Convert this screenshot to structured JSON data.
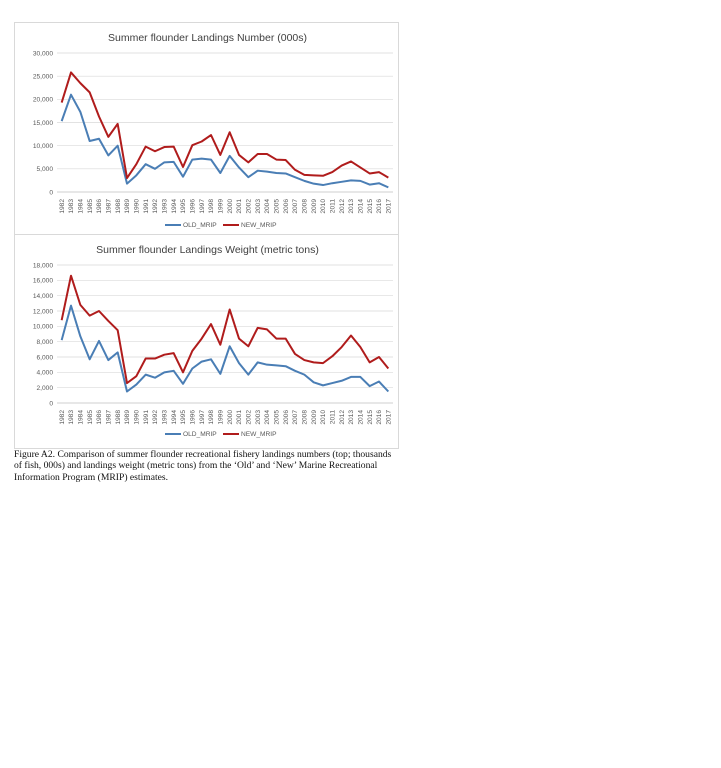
{
  "colors": {
    "old_mrip": "#4a7eb5",
    "new_mrip": "#b01c1c",
    "grid": "#d9d9d9",
    "axis": "#bfbfbf"
  },
  "chart_data": [
    {
      "type": "line",
      "title": "Summer flounder Landings Number (000s)",
      "xlabel": "",
      "ylabel": "",
      "ylim": [
        0,
        30000
      ],
      "yticks": [
        "0",
        "5,000",
        "10,000",
        "15,000",
        "20,000",
        "25,000",
        "30,000"
      ],
      "ytick_values": [
        0,
        5000,
        10000,
        15000,
        20000,
        25000,
        30000
      ],
      "grid": true,
      "legend_position": "bottom",
      "categories": [
        "1982",
        "1983",
        "1984",
        "1985",
        "1986",
        "1987",
        "1988",
        "1989",
        "1990",
        "1991",
        "1992",
        "1993",
        "1994",
        "1995",
        "1996",
        "1997",
        "1998",
        "1999",
        "2000",
        "2001",
        "2002",
        "2003",
        "2004",
        "2005",
        "2006",
        "2007",
        "2008",
        "2009",
        "2010",
        "2011",
        "2012",
        "2013",
        "2014",
        "2015",
        "2016",
        "2017"
      ],
      "series": [
        {
          "name": "OLD_MRIP",
          "color": "#4a7eb5",
          "values": [
            15300,
            21000,
            17300,
            11000,
            11500,
            7900,
            10000,
            1800,
            3600,
            6000,
            5000,
            6400,
            6500,
            3300,
            7000,
            7200,
            7000,
            4100,
            7800,
            5300,
            3200,
            4600,
            4400,
            4100,
            4000,
            3200,
            2400,
            1800,
            1500,
            1900,
            2200,
            2500,
            2400,
            1600,
            1900,
            1000
          ]
        },
        {
          "name": "NEW_MRIP",
          "color": "#b01c1c",
          "values": [
            19300,
            25800,
            23500,
            21500,
            16300,
            11900,
            14700,
            3000,
            6000,
            9800,
            8800,
            9700,
            9800,
            5400,
            10100,
            10900,
            12300,
            8000,
            12900,
            8000,
            6400,
            8200,
            8200,
            7000,
            6900,
            4800,
            3700,
            3600,
            3500,
            4300,
            5700,
            6600,
            5300,
            4000,
            4300,
            3100
          ]
        }
      ]
    },
    {
      "type": "line",
      "title": "Summer flounder Landings Weight (metric tons)",
      "xlabel": "",
      "ylabel": "",
      "ylim": [
        0,
        18000
      ],
      "yticks": [
        "0",
        "2,000",
        "4,000",
        "6,000",
        "8,000",
        "10,000",
        "12,000",
        "14,000",
        "16,000",
        "18,000"
      ],
      "ytick_values": [
        0,
        2000,
        4000,
        6000,
        8000,
        10000,
        12000,
        14000,
        16000,
        18000
      ],
      "grid": true,
      "legend_position": "bottom",
      "categories": [
        "1982",
        "1983",
        "1984",
        "1985",
        "1986",
        "1987",
        "1988",
        "1989",
        "1990",
        "1991",
        "1992",
        "1993",
        "1994",
        "1995",
        "1996",
        "1997",
        "1998",
        "1999",
        "2000",
        "2001",
        "2002",
        "2003",
        "2004",
        "2005",
        "2006",
        "2007",
        "2008",
        "2009",
        "2010",
        "2011",
        "2012",
        "2013",
        "2014",
        "2015",
        "2016",
        "2017"
      ],
      "series": [
        {
          "name": "OLD_MRIP",
          "color": "#4a7eb5",
          "values": [
            8200,
            12700,
            8700,
            5700,
            8100,
            5600,
            6600,
            1500,
            2400,
            3700,
            3300,
            4000,
            4200,
            2500,
            4500,
            5400,
            5700,
            3800,
            7400,
            5200,
            3700,
            5300,
            5000,
            4900,
            4800,
            4200,
            3700,
            2700,
            2300,
            2600,
            2900,
            3400,
            3400,
            2200,
            2800,
            1500
          ]
        },
        {
          "name": "NEW_MRIP",
          "color": "#b01c1c",
          "values": [
            10800,
            16600,
            12800,
            11400,
            12000,
            10700,
            9500,
            2600,
            3500,
            5800,
            5800,
            6300,
            6500,
            4000,
            6800,
            8400,
            10300,
            7600,
            12200,
            8400,
            7400,
            9800,
            9600,
            8400,
            8400,
            6400,
            5600,
            5300,
            5200,
            6100,
            7300,
            8800,
            7300,
            5300,
            6000,
            4500
          ]
        }
      ]
    }
  ],
  "caption": "Figure A2. Comparison of summer flounder recreational fishery landings numbers (top; thousands of fish, 000s) and landings weight (metric tons) from the ‘Old’ and ‘New’ Marine Recreational Information Program (MRIP) estimates."
}
